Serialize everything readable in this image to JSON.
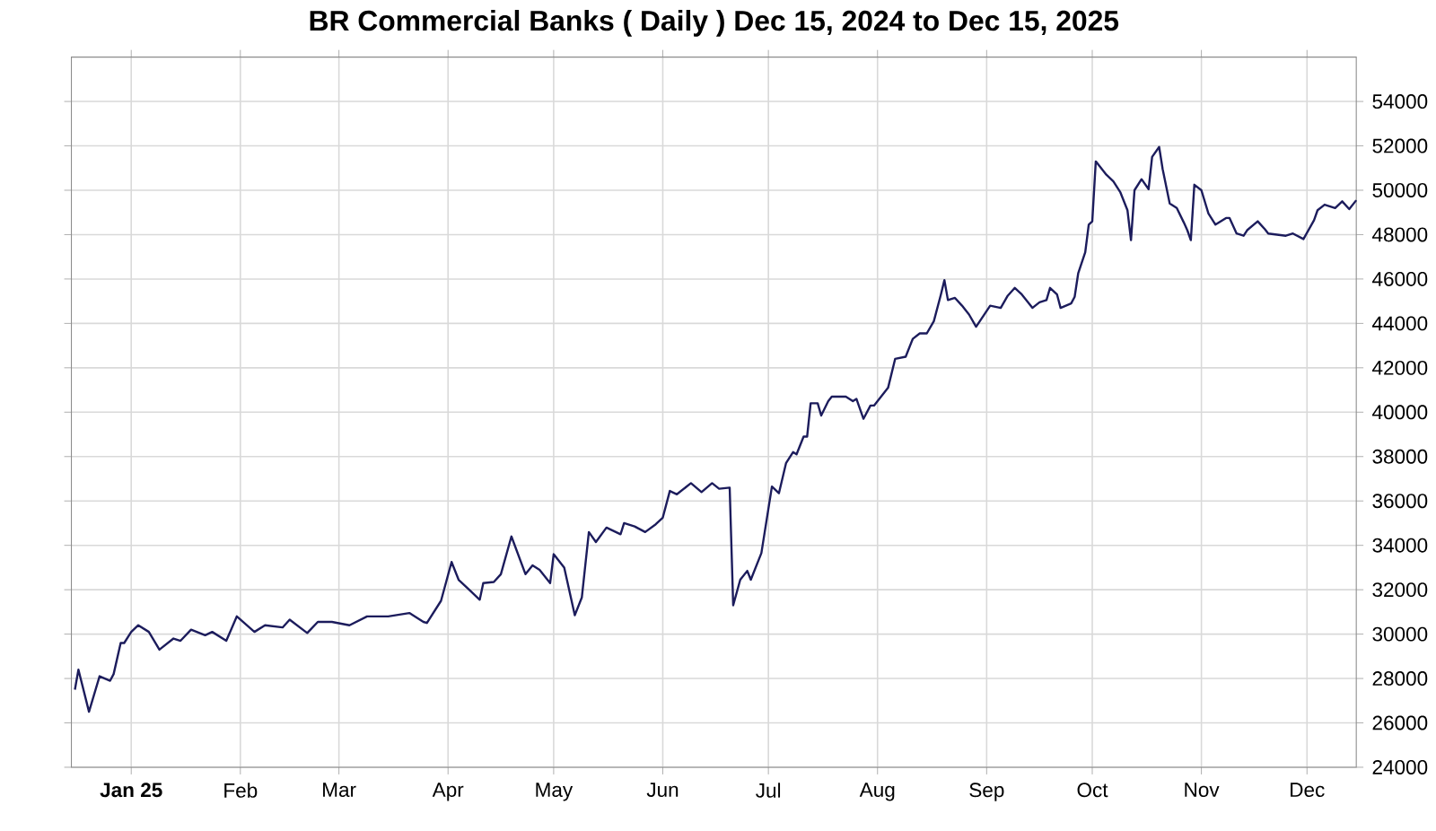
{
  "chart_data": {
    "type": "line",
    "title": "BR Commercial Banks ( Daily ) Dec 15, 2024 to Dec 15, 2025",
    "xlim": [
      "2024-12-15",
      "2025-12-15"
    ],
    "xticks": [
      {
        "value": "2025-01-01",
        "label": "**Jan 25**"
      },
      {
        "value": "2025-02-01",
        "label": "Feb"
      },
      {
        "value": "2025-03-01",
        "label": "Mar"
      },
      {
        "value": "2025-04-01",
        "label": "Apr"
      },
      {
        "value": "2025-05-01",
        "label": "May"
      },
      {
        "value": "2025-06-01",
        "label": "Jun"
      },
      {
        "value": "2025-07-01",
        "label": "Jul"
      },
      {
        "value": "2025-08-01",
        "label": "Aug"
      },
      {
        "value": "2025-09-01",
        "label": "Sep"
      },
      {
        "value": "2025-10-01",
        "label": "Oct"
      },
      {
        "value": "2025-11-01",
        "label": "Nov"
      },
      {
        "value": "2025-12-01",
        "label": "Dec"
      }
    ],
    "ylim": [
      24000,
      56000
    ],
    "yticks": [
      24000,
      26000,
      28000,
      30000,
      32000,
      34000,
      36000,
      38000,
      40000,
      42000,
      44000,
      46000,
      48000,
      50000,
      52000,
      54000
    ],
    "grid": true,
    "line_style": "solid",
    "x": [
      "2024-12-16",
      "2024-12-17",
      "2024-12-20",
      "2024-12-23",
      "2024-12-26",
      "2024-12-27",
      "2024-12-29",
      "2024-12-30",
      "2025-01-01",
      "2025-01-03",
      "2025-01-06",
      "2025-01-09",
      "2025-01-13",
      "2025-01-15",
      "2025-01-18",
      "2025-01-22",
      "2025-01-24",
      "2025-01-28",
      "2025-01-31",
      "2025-02-05",
      "2025-02-08",
      "2025-02-13",
      "2025-02-15",
      "2025-02-20",
      "2025-02-23",
      "2025-02-27",
      "2025-03-04",
      "2025-03-09",
      "2025-03-15",
      "2025-03-21",
      "2025-03-25",
      "2025-03-26",
      "2025-03-30",
      "2025-04-02",
      "2025-04-04",
      "2025-04-07",
      "2025-04-10",
      "2025-04-11",
      "2025-04-14",
      "2025-04-16",
      "2025-04-19",
      "2025-04-23",
      "2025-04-25",
      "2025-04-27",
      "2025-04-30",
      "2025-05-01",
      "2025-05-04",
      "2025-05-07",
      "2025-05-09",
      "2025-05-11",
      "2025-05-13",
      "2025-05-16",
      "2025-05-20",
      "2025-05-21",
      "2025-05-24",
      "2025-05-27",
      "2025-05-30",
      "2025-06-01",
      "2025-06-03",
      "2025-06-05",
      "2025-06-09",
      "2025-06-12",
      "2025-06-15",
      "2025-06-17",
      "2025-06-20",
      "2025-06-21",
      "2025-06-23",
      "2025-06-25",
      "2025-06-26",
      "2025-06-29",
      "2025-07-02",
      "2025-07-04",
      "2025-07-06",
      "2025-07-08",
      "2025-07-09",
      "2025-07-11",
      "2025-07-12",
      "2025-07-13",
      "2025-07-15",
      "2025-07-16",
      "2025-07-18",
      "2025-07-19",
      "2025-07-23",
      "2025-07-25",
      "2025-07-26",
      "2025-07-28",
      "2025-07-30",
      "2025-07-31",
      "2025-08-03",
      "2025-08-04",
      "2025-08-06",
      "2025-08-09",
      "2025-08-11",
      "2025-08-13",
      "2025-08-15",
      "2025-08-17",
      "2025-08-19",
      "2025-08-20",
      "2025-08-21",
      "2025-08-23",
      "2025-08-25",
      "2025-08-27",
      "2025-08-29",
      "2025-09-02",
      "2025-09-05",
      "2025-09-07",
      "2025-09-09",
      "2025-09-11",
      "2025-09-14",
      "2025-09-16",
      "2025-09-18",
      "2025-09-19",
      "2025-09-21",
      "2025-09-22",
      "2025-09-25",
      "2025-09-26",
      "2025-09-27",
      "2025-09-29",
      "2025-09-30",
      "2025-10-01",
      "2025-10-02",
      "2025-10-05",
      "2025-10-07",
      "2025-10-09",
      "2025-10-11",
      "2025-10-12",
      "2025-10-13",
      "2025-10-15",
      "2025-10-17",
      "2025-10-18",
      "2025-10-20",
      "2025-10-21",
      "2025-10-23",
      "2025-10-25",
      "2025-10-27",
      "2025-10-28",
      "2025-10-29",
      "2025-10-30",
      "2025-11-01",
      "2025-11-03",
      "2025-11-05",
      "2025-11-08",
      "2025-11-09",
      "2025-11-11",
      "2025-11-13",
      "2025-11-14",
      "2025-11-17",
      "2025-11-19",
      "2025-11-20",
      "2025-11-25",
      "2025-11-27",
      "2025-11-30",
      "2025-12-03",
      "2025-12-04",
      "2025-12-06",
      "2025-12-09",
      "2025-12-11",
      "2025-12-13",
      "2025-12-15"
    ],
    "series": [
      {
        "color": "#1c1c5c",
        "values": [
          27500,
          28400,
          26500,
          28100,
          27900,
          28200,
          29600,
          29600,
          30100,
          30400,
          30100,
          29300,
          29800,
          29700,
          30200,
          29950,
          30100,
          29700,
          30800,
          30100,
          30400,
          30300,
          30650,
          30050,
          30550,
          30550,
          30400,
          30800,
          30800,
          30950,
          30550,
          30500,
          31500,
          33250,
          32450,
          32000,
          31550,
          32300,
          32350,
          32700,
          34400,
          32700,
          33100,
          32900,
          32300,
          33600,
          33000,
          30850,
          31650,
          34600,
          34150,
          34800,
          34500,
          35000,
          34850,
          34600,
          34950,
          35250,
          36450,
          36300,
          36800,
          36400,
          36800,
          36550,
          36600,
          31300,
          32450,
          32850,
          32450,
          33650,
          36650,
          36350,
          37700,
          38200,
          38100,
          38900,
          38900,
          40400,
          40400,
          39850,
          40500,
          40700,
          40700,
          40500,
          40600,
          39700,
          40300,
          40300,
          40900,
          41100,
          42400,
          42500,
          43300,
          43550,
          43550,
          44100,
          45300,
          45950,
          45050,
          45150,
          44800,
          44400,
          43850,
          44800,
          44700,
          45250,
          45600,
          45300,
          44700,
          44950,
          45050,
          45600,
          45300,
          44700,
          44900,
          45200,
          46250,
          47200,
          48450,
          48600,
          51300,
          50700,
          50400,
          49900,
          49100,
          47750,
          50000,
          50500,
          50050,
          51500,
          51950,
          50950,
          49400,
          49200,
          48550,
          48200,
          47750,
          50250,
          50000,
          48950,
          48450,
          48750,
          48750,
          48050,
          47950,
          48200,
          48600,
          48250,
          48050,
          47950,
          48050,
          47800,
          48650,
          49100,
          49350,
          49200,
          49500,
          49150,
          49550
        ]
      }
    ]
  }
}
